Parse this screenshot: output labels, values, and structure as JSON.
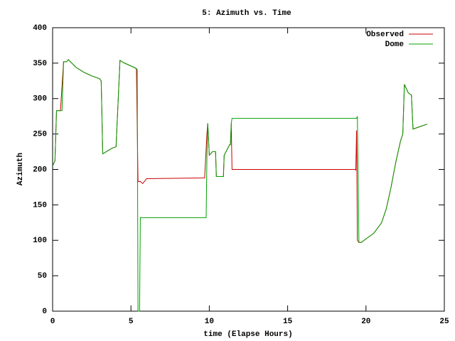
{
  "chart_data": {
    "type": "line",
    "title": "5: Azimuth vs. Time",
    "x_label": "time (Elapse Hours)",
    "y_label": "Azimuth",
    "xlim": [
      0,
      25
    ],
    "xticks": [
      0,
      5,
      10,
      15,
      20,
      25
    ],
    "ylim": [
      0,
      400
    ],
    "yticks": [
      0,
      50,
      100,
      150,
      200,
      250,
      300,
      350,
      400
    ],
    "grid": false,
    "legend": "top-right",
    "series": [
      {
        "name": "Observed",
        "color": "#cc0000",
        "x": [
          0,
          0.15,
          0.25,
          0.5,
          0.7,
          0.9,
          1.0,
          1.5,
          2.0,
          2.5,
          3.0,
          3.1,
          3.2,
          3.5,
          3.8,
          4.05,
          4.3,
          4.5,
          5.0,
          5.3,
          5.35,
          5.4,
          5.45,
          5.6,
          5.75,
          6.0,
          9.7,
          9.85,
          9.9,
          10.0,
          10.2,
          10.4,
          10.45,
          10.9,
          10.95,
          11.3,
          11.35,
          11.4,
          11.45,
          19.3,
          19.35,
          19.4,
          19.45,
          19.55,
          19.7,
          20.0,
          20.5,
          21.0,
          21.3,
          21.6,
          21.9,
          22.2,
          22.35,
          22.45,
          22.7,
          22.9,
          23.0,
          23.4,
          23.9
        ],
        "values": [
          205,
          212,
          283,
          283,
          352,
          352,
          355,
          344,
          337,
          332,
          328,
          325,
          222,
          226,
          230,
          232,
          354,
          351,
          346,
          343,
          341,
          262,
          183,
          183,
          180,
          187,
          188,
          250,
          265,
          220,
          225,
          225,
          190,
          190,
          220,
          235,
          235,
          265,
          200,
          200,
          199,
          255,
          100,
          97,
          97,
          102,
          110,
          125,
          145,
          175,
          210,
          240,
          250,
          320,
          308,
          305,
          257,
          260,
          264
        ]
      },
      {
        "name": "Dome",
        "color": "#00a000",
        "x": [
          0,
          0.15,
          0.25,
          0.5,
          0.6,
          0.7,
          0.9,
          1.0,
          1.5,
          2.0,
          2.5,
          3.0,
          3.1,
          3.2,
          3.5,
          3.8,
          4.05,
          4.3,
          4.5,
          5.0,
          5.3,
          5.4,
          5.45,
          5.55,
          5.6,
          9.8,
          9.85,
          9.9,
          10.0,
          10.2,
          10.4,
          10.45,
          10.9,
          10.95,
          11.3,
          11.35,
          11.4,
          11.45,
          19.4,
          19.45,
          19.55,
          19.7,
          20.0,
          20.5,
          21.0,
          21.3,
          21.6,
          21.9,
          22.2,
          22.35,
          22.45,
          22.7,
          22.9,
          23.0,
          23.4,
          23.9
        ],
        "values": [
          205,
          212,
          283,
          283,
          283,
          352,
          352,
          355,
          344,
          337,
          332,
          328,
          325,
          222,
          226,
          230,
          232,
          354,
          351,
          346,
          343,
          341,
          0,
          0,
          132,
          132,
          220,
          265,
          220,
          225,
          225,
          190,
          190,
          220,
          235,
          235,
          265,
          272,
          272,
          275,
          97,
          97,
          102,
          110,
          125,
          145,
          175,
          210,
          240,
          250,
          320,
          308,
          305,
          257,
          260,
          264
        ]
      }
    ]
  }
}
